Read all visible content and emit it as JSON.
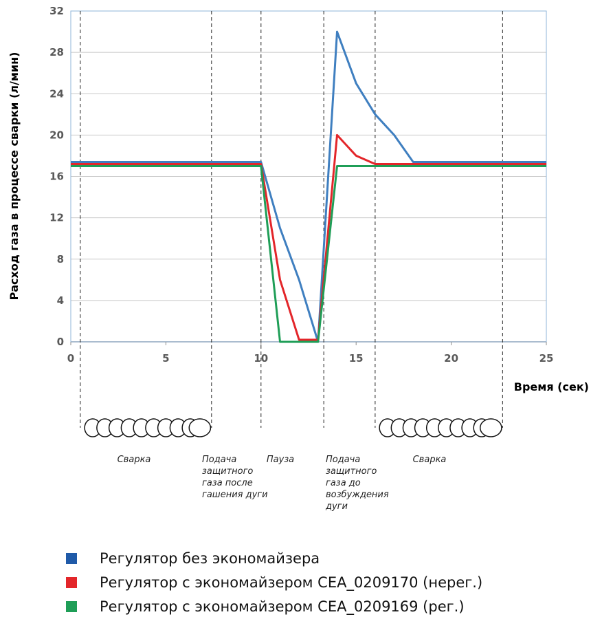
{
  "chart_data": {
    "type": "line",
    "title": "",
    "xlabel": "Время (сек)",
    "ylabel": "Расход газа в процессе сварки (л/мин)",
    "xlim": [
      0,
      25
    ],
    "ylim": [
      0,
      32
    ],
    "x_ticks": [
      0,
      5,
      10,
      15,
      20,
      25
    ],
    "y_ticks": [
      0,
      4,
      8,
      12,
      16,
      20,
      24,
      28,
      32
    ],
    "grid": "horizontal",
    "legend_position": "bottom",
    "series": [
      {
        "name": "Регулятор без экономайзера",
        "color": "#3f7fc0",
        "points": [
          [
            0,
            17.4
          ],
          [
            10,
            17.4
          ],
          [
            11,
            11
          ],
          [
            12,
            6
          ],
          [
            13,
            0
          ],
          [
            14,
            30
          ],
          [
            15,
            25
          ],
          [
            16,
            22
          ],
          [
            17,
            20
          ],
          [
            18,
            17.4
          ],
          [
            25,
            17.4
          ]
        ]
      },
      {
        "name": "Регулятор с экономайзером CEA_0209170 (нерег.)",
        "color": "#e3262a",
        "points": [
          [
            0,
            17.2
          ],
          [
            10,
            17.2
          ],
          [
            11,
            6
          ],
          [
            12,
            0.2
          ],
          [
            13,
            0.2
          ],
          [
            14,
            20
          ],
          [
            15,
            18
          ],
          [
            16,
            17.2
          ],
          [
            25,
            17.2
          ]
        ]
      },
      {
        "name": "Регулятор с экономайзером CEA_0209169 (рег.)",
        "color": "#1f9e57",
        "points": [
          [
            0,
            17
          ],
          [
            10,
            17
          ],
          [
            11,
            0
          ],
          [
            13,
            0
          ],
          [
            14,
            17
          ],
          [
            25,
            17
          ]
        ]
      }
    ],
    "phase_markers": [
      0.5,
      7.4,
      10,
      13.3,
      16,
      22.7
    ],
    "phases": [
      {
        "label": "Сварка",
        "lines": [
          "Сварка"
        ],
        "x_from": 0.5,
        "x_to": 7.4,
        "has_wire": true
      },
      {
        "label": "Подача защитного газа после гашения дуги",
        "lines": [
          "Подача",
          "защитного",
          "газа после",
          "гашения дуги"
        ],
        "x_from": 7.4,
        "x_to": 10,
        "has_wire": false
      },
      {
        "label": "Пауза",
        "lines": [
          "Пауза"
        ],
        "x_from": 10,
        "x_to": 13.3,
        "has_wire": false
      },
      {
        "label": "Подача защитного газа до возбуждения дуги",
        "lines": [
          "Подача",
          "защитного",
          "газа до",
          "возбуждения",
          "дуги"
        ],
        "x_from": 13.3,
        "x_to": 16,
        "has_wire": false
      },
      {
        "label": "Сварка",
        "lines": [
          "Сварка"
        ],
        "x_from": 16,
        "x_to": 22.7,
        "has_wire": true
      }
    ],
    "legend": [
      {
        "label": "Регулятор без экономайзера",
        "color": "#1f5aa8"
      },
      {
        "label": "Регулятор с экономайзером CEA_0209170 (нерег.)",
        "color": "#e3262a"
      },
      {
        "label": "Регулятор с экономайзером CEA_0209169 (рег.)",
        "color": "#1f9e57"
      }
    ]
  }
}
